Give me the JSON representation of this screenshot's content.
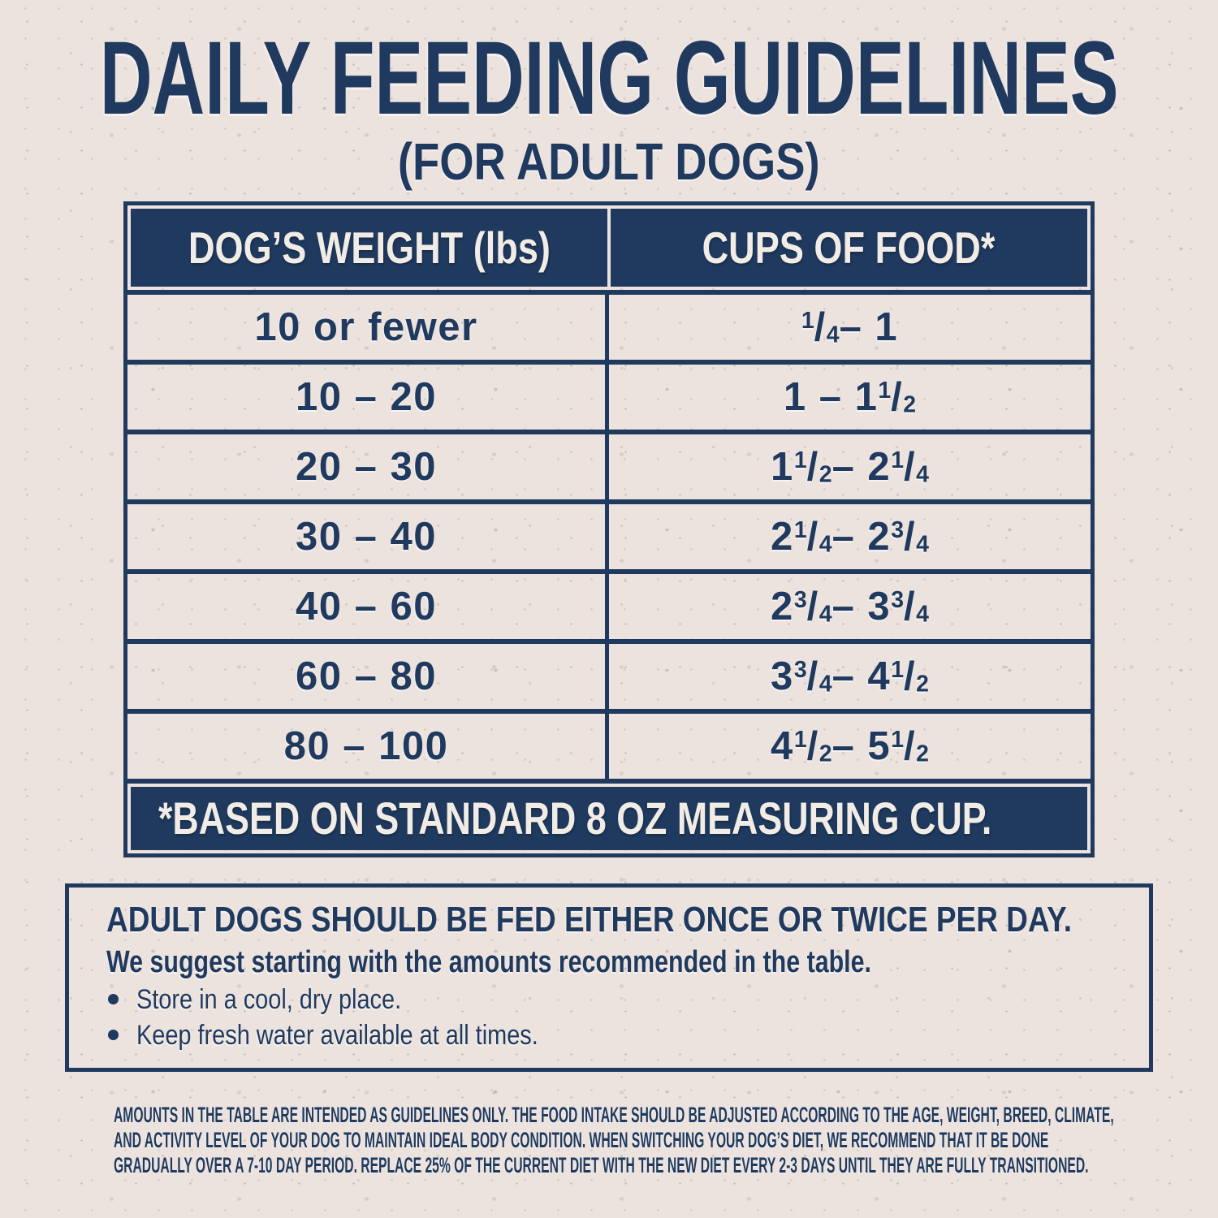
{
  "page": {
    "title": "DAILY FEEDING GUIDELINES",
    "subtitle": "(FOR ADULT DOGS)"
  },
  "table": {
    "col1_header": "DOG’S WEIGHT (lbs)",
    "col2_header": "CUPS OF FOOD*",
    "rows": [
      {
        "weight": "10 or fewer",
        "cups": "¼ – 1"
      },
      {
        "weight": "10 – 20",
        "cups": "1 – 1 ½"
      },
      {
        "weight": "20 – 30",
        "cups": "1 ½ – 2 ¼"
      },
      {
        "weight": "30 – 40",
        "cups": "2 ¼ – 2 ¾"
      },
      {
        "weight": "40 – 60",
        "cups": "2 ¾ – 3 ¾"
      },
      {
        "weight": "60 – 80",
        "cups": "3 ¾ – 4 ½"
      },
      {
        "weight": "80 – 100",
        "cups": "4 ½ – 5 ½"
      }
    ],
    "footnote": "*BASED ON STANDARD 8 OZ MEASURING CUP."
  },
  "info_box": {
    "heading": "ADULT DOGS SHOULD BE FED EITHER ONCE OR TWICE PER DAY.",
    "subheading": "We suggest starting with the amounts recommended in the table.",
    "bullets": [
      "Store in a cool, dry place.",
      "Keep fresh water available at all times."
    ]
  },
  "disclaimer": {
    "lines": [
      "AMOUNTS IN THE TABLE ARE INTENDED AS GUIDELINES ONLY. THE FOOD INTAKE SHOULD BE ADJUSTED ACCORDING TO THE AGE, WEIGHT, BREED, CLIMATE,",
      "AND ACTIVITY LEVEL OF YOUR DOG TO MAINTAIN IDEAL BODY CONDITION. WHEN SWITCHING YOUR DOG’S DIET, WE RECOMMEND THAT IT BE DONE",
      "GRADUALLY OVER A 7-10 DAY PERIOD. REPLACE 25% OF THE CURRENT DIET WITH THE NEW DIET EVERY 2-3 DAYS UNTIL THEY ARE FULLY TRANSITIONED."
    ]
  },
  "colors": {
    "navy": "#1F3A5E",
    "paper": "#EDE3DE",
    "text_light": "#F2ECE6"
  }
}
